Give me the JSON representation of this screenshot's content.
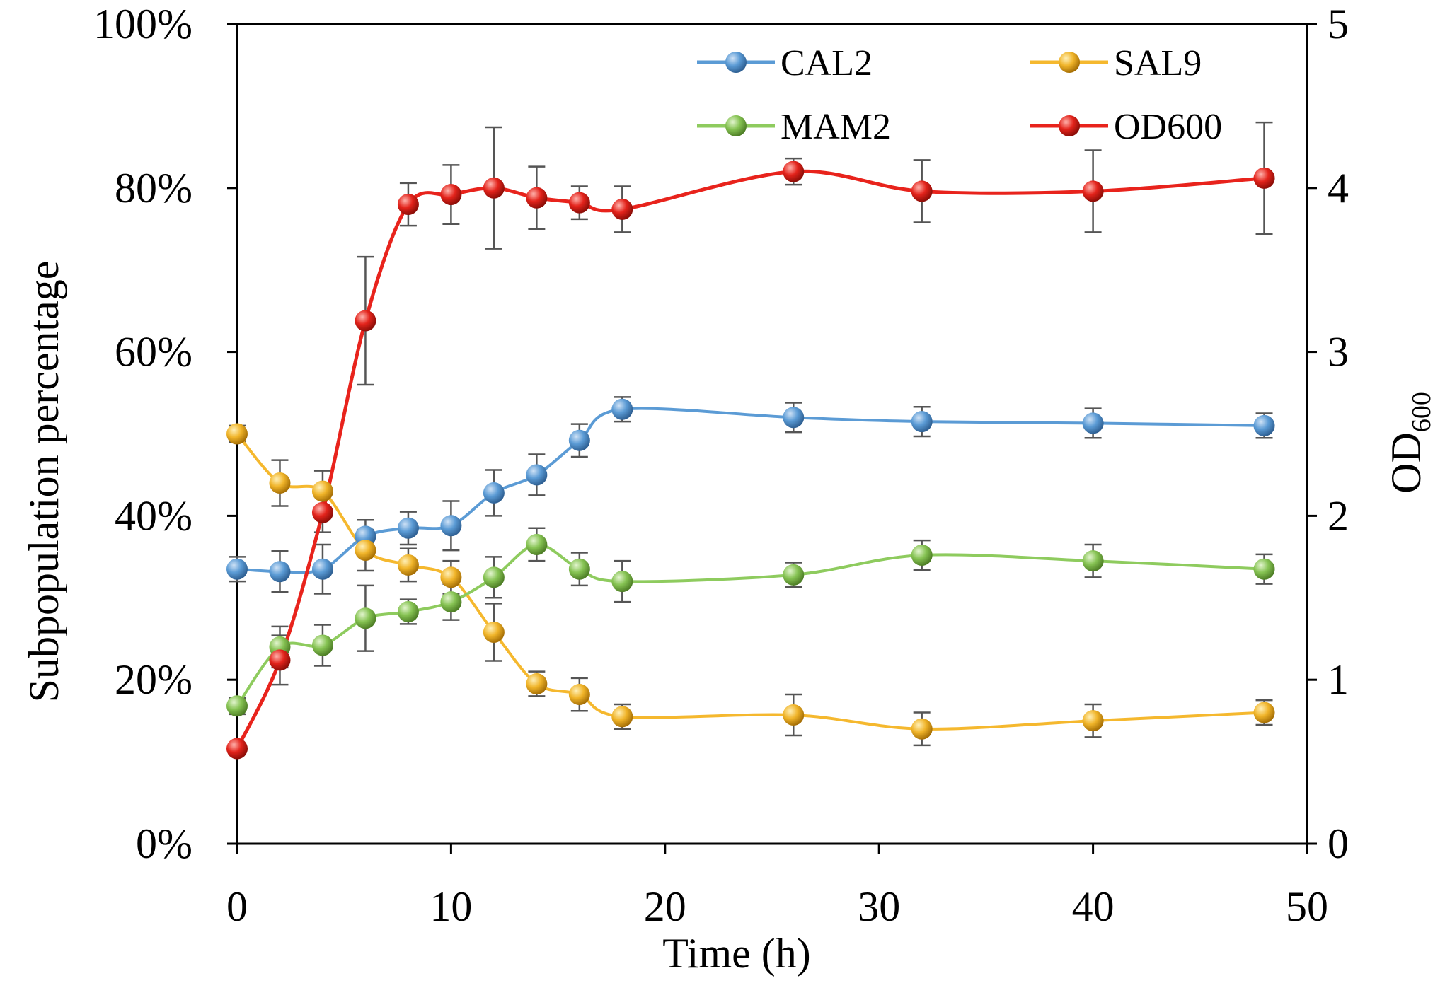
{
  "chart_data": {
    "type": "line",
    "xlabel": "Time (h)",
    "ylabel_left": "Subpopulation percentage",
    "ylabel_right": "OD600",
    "xlim": [
      0,
      50
    ],
    "ylim_left": [
      0,
      100
    ],
    "ylim_right": [
      0,
      5
    ],
    "x_ticks": [
      "0",
      "10",
      "20",
      "30",
      "40",
      "50"
    ],
    "y_ticks_left": [
      "0%",
      "20%",
      "40%",
      "60%",
      "80%",
      "100%"
    ],
    "y_ticks_right": [
      "0",
      "1",
      "2",
      "3",
      "4",
      "5"
    ],
    "grid": false,
    "legend_position": "top-right",
    "x": [
      0,
      2,
      4,
      6,
      8,
      10,
      12,
      14,
      16,
      18,
      26,
      32,
      40,
      48
    ],
    "series": [
      {
        "name": "CAL2",
        "axis": "left",
        "color": "#5b9bd5",
        "values": [
          33.5,
          33.2,
          33.5,
          37.5,
          38.5,
          38.8,
          42.8,
          45.0,
          49.2,
          53.0,
          52.0,
          51.5,
          51.3,
          51.0
        ],
        "errors": [
          1.5,
          2.5,
          3.0,
          2.0,
          2.0,
          3.0,
          2.8,
          2.5,
          2.0,
          1.5,
          1.8,
          1.8,
          1.8,
          1.5
        ]
      },
      {
        "name": "SAL9",
        "axis": "left",
        "color": "#f5b82e",
        "values": [
          50.0,
          44.0,
          43.0,
          35.8,
          34.0,
          32.5,
          25.8,
          19.5,
          18.2,
          15.5,
          15.7,
          14.0,
          15.0,
          16.0
        ],
        "errors": [
          1.0,
          2.8,
          2.5,
          2.5,
          2.0,
          2.0,
          3.5,
          1.5,
          2.0,
          1.5,
          2.5,
          2.0,
          2.0,
          1.5
        ]
      },
      {
        "name": "MAM2",
        "axis": "left",
        "color": "#8ecb5e",
        "values": [
          16.8,
          24.0,
          24.2,
          27.5,
          28.3,
          29.5,
          32.5,
          36.5,
          33.5,
          32.0,
          32.8,
          35.2,
          34.5,
          33.5
        ],
        "errors": [
          1.0,
          2.5,
          2.5,
          4.0,
          1.5,
          2.2,
          2.5,
          2.0,
          2.0,
          2.5,
          1.5,
          1.8,
          2.0,
          1.8
        ]
      },
      {
        "name": "OD600",
        "axis": "right",
        "color": "#e8231c",
        "values": [
          0.58,
          1.12,
          2.02,
          3.19,
          3.9,
          3.96,
          4.0,
          3.94,
          3.91,
          3.87,
          4.1,
          3.98,
          3.98,
          4.06
        ],
        "errors": [
          0.03,
          0.15,
          0.12,
          0.39,
          0.13,
          0.18,
          0.37,
          0.19,
          0.1,
          0.14,
          0.08,
          0.19,
          0.25,
          0.34
        ]
      }
    ]
  }
}
